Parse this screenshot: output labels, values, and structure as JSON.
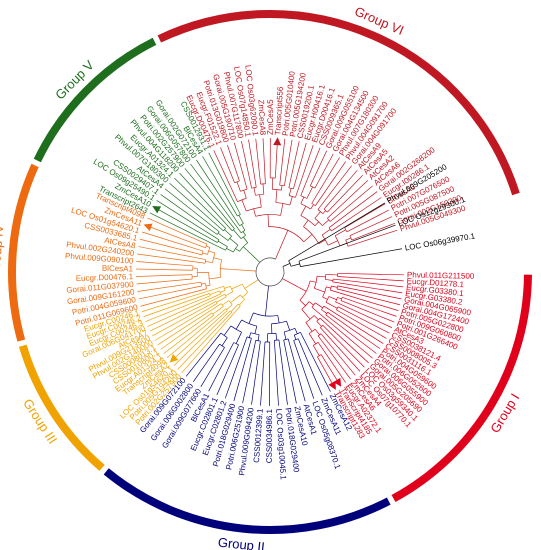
{
  "groups": [
    {
      "id": "I",
      "label": "Group I",
      "color": "#e0001b",
      "start": 90,
      "end": 152
    },
    {
      "id": "II",
      "label": "Group II",
      "color": "#00007a",
      "start": 152,
      "end": 220
    },
    {
      "id": "III",
      "label": "Group III",
      "color": "#f0a300",
      "start": 220,
      "end": 254
    },
    {
      "id": "IV",
      "label": "Group IV",
      "color": "#ee6a10",
      "start": 254,
      "end": 295
    },
    {
      "id": "V",
      "label": "Group V",
      "color": "#1e6e1e",
      "start": 295,
      "end": 334
    },
    {
      "id": "VI",
      "label": "Group VI",
      "color": "#c01822",
      "start": 334,
      "end": 433
    }
  ],
  "outgroup_color": "#000000",
  "marker_shape": "triangle",
  "leaves": [
    {
      "name": "Phvul.011G211500",
      "group": "I"
    },
    {
      "name": "Eucgr.D01278.1",
      "group": "I"
    },
    {
      "name": "Eucgr.G03380.1",
      "group": "I"
    },
    {
      "name": "Eucgr.G03380.2",
      "group": "I"
    },
    {
      "name": "Gorai.004G065900",
      "group": "I"
    },
    {
      "name": "Gorai.004G172400",
      "group": "I"
    },
    {
      "name": "Potri.005G022800",
      "group": "I"
    },
    {
      "name": "Potri.009G060800",
      "group": "I"
    },
    {
      "name": "Potri.001G266400",
      "group": "I"
    },
    {
      "name": "AtCesA3",
      "group": "I"
    },
    {
      "name": "CSS0038121.4",
      "group": "I"
    },
    {
      "name": "CSS0008005.3",
      "group": "I"
    },
    {
      "name": "CSS0031116.1",
      "group": "I"
    },
    {
      "name": "Potri.004G059600",
      "group": "I"
    },
    {
      "name": "Potri.006G052600",
      "group": "I"
    },
    {
      "name": "Gorai.006G055900",
      "group": "I"
    },
    {
      "name": "Gorai.005G205690",
      "group": "I"
    },
    {
      "name": "LOC Os03g59340.1",
      "group": "I"
    },
    {
      "name": "LOC Os07g10770.1",
      "group": "I"
    },
    {
      "name": "ZmCesA4",
      "group": "I"
    },
    {
      "name": "ZmCesA6",
      "group": "I"
    },
    {
      "name": "Eucgr.A02372.1",
      "group": "I"
    },
    {
      "name": "Transcript4185",
      "group": "I",
      "marked": true
    },
    {
      "name": "Transcript1283",
      "group": "I",
      "marked": true
    },
    {
      "name": "ZmCesA12",
      "group": "II"
    },
    {
      "name": "ZmCesA11",
      "group": "II"
    },
    {
      "name": "LOC Os05g08370.1",
      "group": "II"
    },
    {
      "name": "AtCesA1",
      "group": "II"
    },
    {
      "name": "ZmCesA10",
      "group": "II"
    },
    {
      "name": "Potri.018G029400",
      "group": "II"
    },
    {
      "name": "LOC Os03g10045.1",
      "group": "II"
    },
    {
      "name": "CSS0034986.1",
      "group": "II"
    },
    {
      "name": "CSS0012399.1",
      "group": "II"
    },
    {
      "name": "Phvul.009G094200",
      "group": "II"
    },
    {
      "name": "Potri.006G251900",
      "group": "II"
    },
    {
      "name": "Potri.018G029400",
      "group": "II"
    },
    {
      "name": "Eucgr.C02801.2",
      "group": "II"
    },
    {
      "name": "Eucgr.C02801.1",
      "group": "II"
    },
    {
      "name": "BlCesA1",
      "group": "II"
    },
    {
      "name": "Gorai.009G077600",
      "group": "II"
    },
    {
      "name": "Gorai.006G002800",
      "group": "II"
    },
    {
      "name": "Gorai.009G072100",
      "group": "II"
    },
    {
      "name": "Potri.002G257900",
      "group": "III"
    },
    {
      "name": "Potri.005G194200",
      "group": "III"
    },
    {
      "name": "LOC Os01g54620.1",
      "group": "III"
    },
    {
      "name": "ZmCesA2",
      "group": "III",
      "marked": true
    },
    {
      "name": "Transcript4098",
      "group": "III"
    },
    {
      "name": "Eucgr.A01324.1",
      "group": "III"
    },
    {
      "name": "CSS0010800.1",
      "group": "III"
    },
    {
      "name": "CSS0008013.1",
      "group": "III"
    },
    {
      "name": "Phvul.002G140000",
      "group": "III"
    },
    {
      "name": "Phvul.009G213500",
      "group": "III"
    },
    {
      "name": "AtCesA7",
      "group": "III"
    },
    {
      "name": "Gorai.006G041700",
      "group": "III"
    },
    {
      "name": "Eucgr.C00246.3",
      "group": "III"
    },
    {
      "name": "Eucgr.C00246.2",
      "group": "III"
    },
    {
      "name": "Eucgr.C00246.1",
      "group": "III"
    },
    {
      "name": "Potri.011G069600",
      "group": "IV"
    },
    {
      "name": "Potri.004G059600",
      "group": "IV"
    },
    {
      "name": "Gorai.009G161200",
      "group": "IV"
    },
    {
      "name": "Gorai.011G037900",
      "group": "IV"
    },
    {
      "name": "Eucgr.D00476.1",
      "group": "IV"
    },
    {
      "name": "BlCesA1",
      "group": "IV"
    },
    {
      "name": "Phvul.009G090100",
      "group": "IV"
    },
    {
      "name": "Phvul.002G240200",
      "group": "IV"
    },
    {
      "name": "AtCesA8",
      "group": "IV"
    },
    {
      "name": "CSS0033685.1",
      "group": "IV"
    },
    {
      "name": "LOC Os01g54620.1",
      "group": "IV"
    },
    {
      "name": "ZmCesA11",
      "group": "IV",
      "marked": true
    },
    {
      "name": "Transcript4098",
      "group": "IV"
    },
    {
      "name": "Transcript2643",
      "group": "V"
    },
    {
      "name": "ZmCesA10",
      "group": "V",
      "marked": true
    },
    {
      "name": "LOC Os09g25490.1",
      "group": "V"
    },
    {
      "name": "CSS0029407.1",
      "group": "V"
    },
    {
      "name": "AtCesA4",
      "group": "V"
    },
    {
      "name": "Phvul.007G180300",
      "group": "V"
    },
    {
      "name": "Eucgr.A01324.1",
      "group": "V"
    },
    {
      "name": "Phvul.004G118200",
      "group": "V"
    },
    {
      "name": "Potri.002G257900",
      "group": "V"
    },
    {
      "name": "Gorai.006G057800",
      "group": "V"
    },
    {
      "name": "Gorai.002G072100",
      "group": "V"
    },
    {
      "name": "BlCesA4",
      "group": "V"
    },
    {
      "name": "CSS0012931.1",
      "group": "V"
    },
    {
      "name": "Eucgr.D00476.1",
      "group": "VI"
    },
    {
      "name": "Eucgr.F01522.1",
      "group": "VI"
    },
    {
      "name": "Potri.013G019800",
      "group": "VI"
    },
    {
      "name": "Gorai.005G190710",
      "group": "VI"
    },
    {
      "name": "Phvul.007G117800",
      "group": "VI"
    },
    {
      "name": "LOC Os07g14850.1",
      "group": "VI"
    },
    {
      "name": "LOC Os03g62090.1",
      "group": "VI"
    },
    {
      "name": "ZmCesA8",
      "group": "VI"
    },
    {
      "name": "ZmCesA5",
      "group": "VI"
    },
    {
      "name": "Transcript556",
      "group": "VI",
      "marked": true
    },
    {
      "name": "Potri.005G010400",
      "group": "VI"
    },
    {
      "name": "Potri.005G194200",
      "group": "VI"
    },
    {
      "name": "CSS0019200.1",
      "group": "VI"
    },
    {
      "name": "Eucgr.H00416.1",
      "group": "VI"
    },
    {
      "name": "Eucgr.D00416.1",
      "group": "VI"
    },
    {
      "name": "CSS0009365.1",
      "group": "VI"
    },
    {
      "name": "Gorai.009G055100",
      "group": "VI"
    },
    {
      "name": "Gorai.004G134500",
      "group": "VI"
    },
    {
      "name": "Phvul.007G180300",
      "group": "VI"
    },
    {
      "name": "Phvul.004G091700",
      "group": "VI"
    },
    {
      "name": "Gorai.004G091700",
      "group": "VI"
    },
    {
      "name": "AtCesA9",
      "group": "VI"
    },
    {
      "name": "AtCesA5",
      "group": "VI"
    },
    {
      "name": "AtCesA2",
      "group": "VI"
    },
    {
      "name": "AtCesA6",
      "group": "VI"
    },
    {
      "name": "Gorai.002G268200",
      "group": "VI"
    },
    {
      "name": "Eucgr.I00286.1",
      "group": "VI"
    },
    {
      "name": "BlCesA6",
      "group": "VI"
    },
    {
      "name": "Potri.007G076500",
      "group": "VI"
    },
    {
      "name": "Potri.005G087500",
      "group": "VI"
    },
    {
      "name": "Gorai.002G150300",
      "group": "VI"
    },
    {
      "name": "Phvul.005G049300",
      "group": "VI"
    },
    {
      "name": "Phvul.009G205200",
      "group": "OUT"
    },
    {
      "name": "LOC Os12g29300.1",
      "group": "OUT"
    },
    {
      "name": "LOC Os06g39970.1",
      "group": "OUT"
    }
  ]
}
